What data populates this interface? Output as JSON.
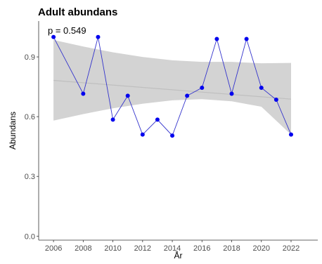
{
  "chart_data": {
    "type": "line",
    "title": "Adult abundans",
    "annotation": "p = 0.549",
    "xlabel": "År",
    "ylabel": "Abundans",
    "xlim": [
      2005,
      2023.8
    ],
    "ylim": [
      -0.02,
      1.08
    ],
    "x_ticks": [
      2006,
      2008,
      2010,
      2012,
      2014,
      2016,
      2018,
      2020,
      2022
    ],
    "y_ticks": [
      0.0,
      0.3,
      0.6,
      0.9
    ],
    "y_tick_labels": [
      "0.0",
      "0.3",
      "0.6",
      "0.9"
    ],
    "grid": false,
    "series": [
      {
        "x": [
          2006,
          2008,
          2009,
          2010,
          2011,
          2012,
          2013,
          2014,
          2015,
          2016,
          2017,
          2018,
          2019,
          2020,
          2021,
          2022
        ],
        "values": [
          1.0,
          0.715,
          1.0,
          0.585,
          0.705,
          0.51,
          0.585,
          0.505,
          0.705,
          0.745,
          0.99,
          0.715,
          0.99,
          0.745,
          0.685,
          0.51
        ]
      }
    ],
    "trend": {
      "x": [
        2006,
        2022
      ],
      "y": [
        0.782,
        0.688
      ]
    },
    "confidence_band": {
      "x": [
        2006,
        2008,
        2010,
        2012,
        2014,
        2016,
        2018,
        2020,
        2022
      ],
      "lower": [
        0.58,
        0.613,
        0.642,
        0.665,
        0.682,
        0.688,
        0.677,
        0.65,
        0.51
      ],
      "upper": [
        0.985,
        0.952,
        0.923,
        0.9,
        0.883,
        0.875,
        0.875,
        0.868,
        0.87
      ]
    },
    "colors": {
      "line": "#3333cc",
      "points": "#0000ee",
      "trend": "#bfbfbf",
      "band": "#d3d3d3",
      "axis": "#333333"
    }
  }
}
